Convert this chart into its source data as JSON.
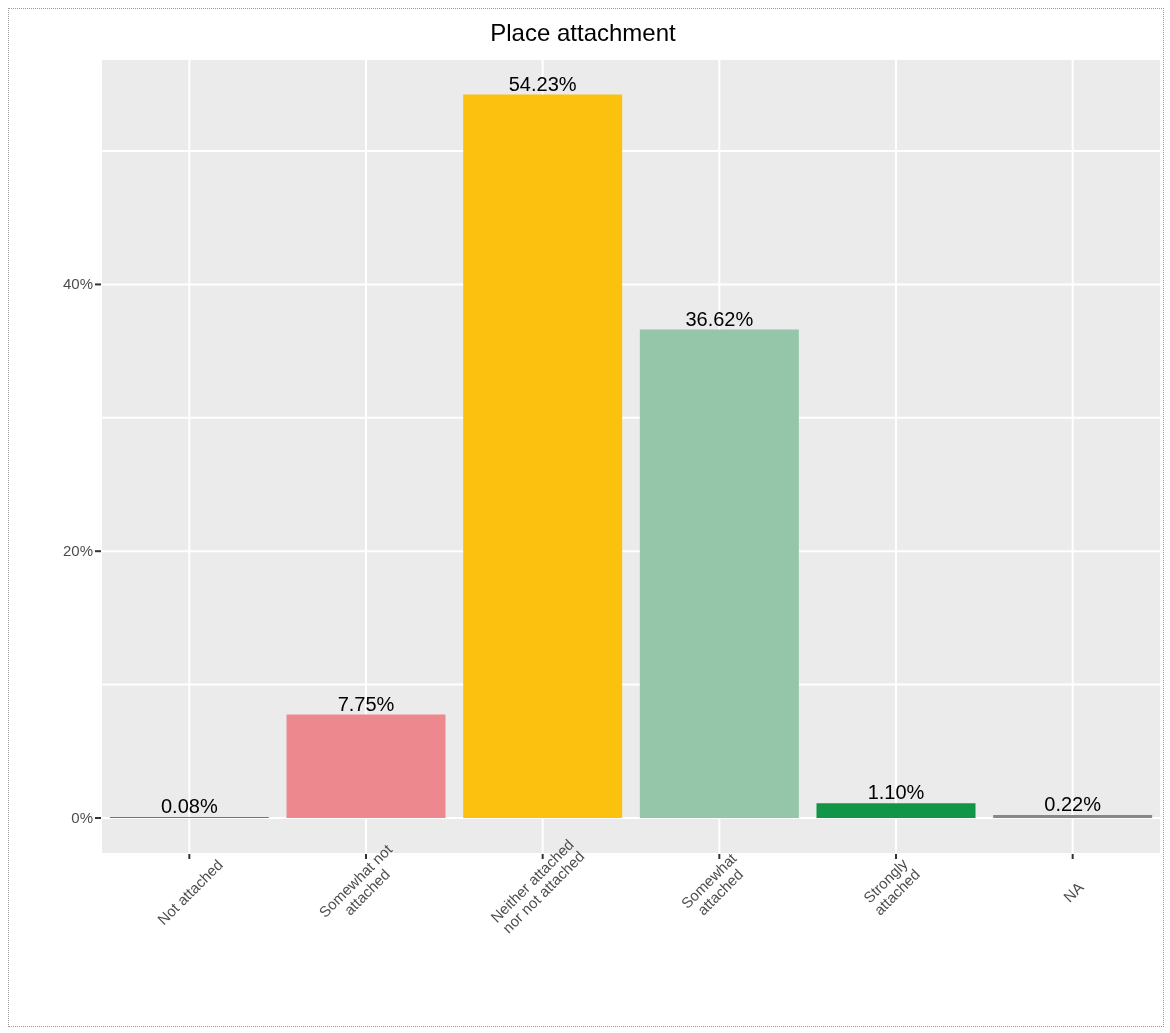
{
  "chart_data": {
    "type": "bar",
    "title": "Place attachment",
    "categories": [
      "Not attached",
      "Somewhat not attached",
      "Neither attached nor not attached",
      "Somewhat attached",
      "Strongly attached",
      "NA"
    ],
    "values": [
      0.08,
      7.75,
      54.23,
      36.62,
      1.1,
      0.22
    ],
    "colors": [
      "#e8414f",
      "#ee888f",
      "#fcc10f",
      "#96c6a9",
      "#119547",
      "#888888"
    ],
    "value_labels": [
      "0.08%",
      "7.75%",
      "54.23%",
      "36.62%",
      "1.10%",
      "0.22%"
    ],
    "ylim": [
      -2.7,
      56.9
    ],
    "yticks": [
      {
        "value": 0,
        "label": "0%"
      },
      {
        "value": 10,
        "label": null
      },
      {
        "value": 20,
        "label": "20%"
      },
      {
        "value": 30,
        "label": null
      },
      {
        "value": 40,
        "label": "40%"
      },
      {
        "value": 50,
        "label": null
      }
    ],
    "grid": true,
    "legend": false
  }
}
